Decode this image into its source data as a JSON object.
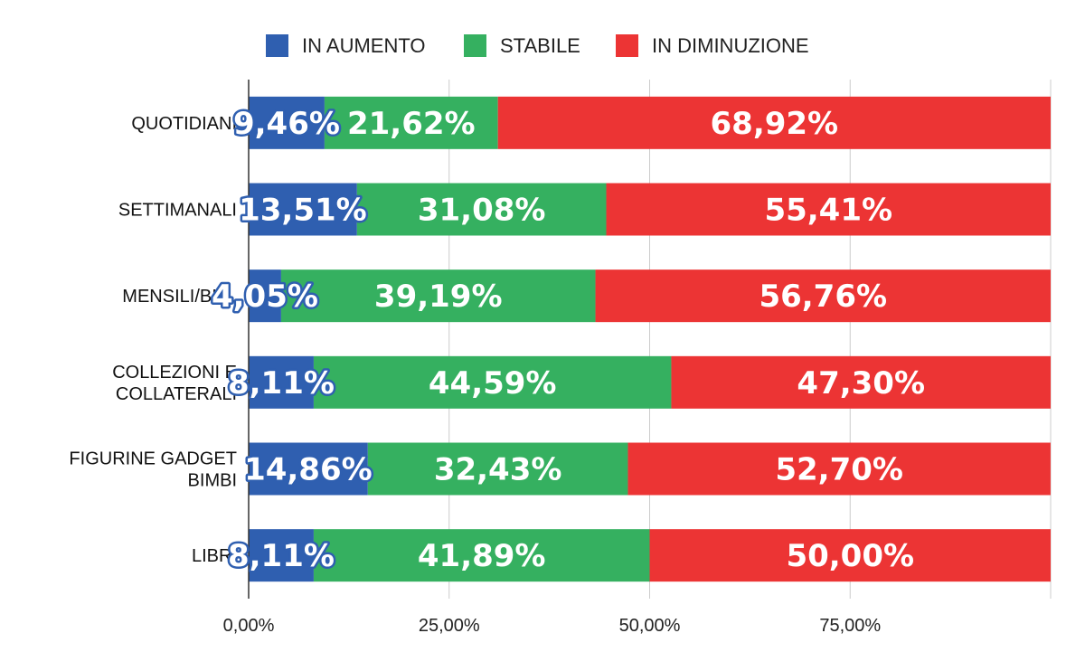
{
  "chart_data": {
    "type": "bar",
    "orientation": "horizontal",
    "stacked": true,
    "title": "",
    "xlabel": "",
    "ylabel": "",
    "categories": [
      "QUOTIDIANI",
      "SETTIMANALI",
      "MENSILI/BIM.",
      "COLLEZIONI E COLLATERALI",
      "FIGURINE GADGET BIMBI",
      "LIBRI"
    ],
    "category_lines": [
      [
        "QUOTIDIANI"
      ],
      [
        "SETTIMANALI"
      ],
      [
        "MENSILI/BIM."
      ],
      [
        "COLLEZIONI E",
        "COLLATERALI"
      ],
      [
        "FIGURINE GADGET",
        "BIMBI"
      ],
      [
        "LIBRI"
      ]
    ],
    "series": [
      {
        "name": "IN AUMENTO",
        "color": "#2f5fb0",
        "values": [
          9.46,
          13.51,
          4.05,
          8.11,
          14.86,
          8.11
        ],
        "labels": [
          "9,46%",
          "13,51%",
          "4,05%",
          "8,11%",
          "14,86%",
          "8,11%"
        ]
      },
      {
        "name": "STABILE",
        "color": "#35b060",
        "values": [
          21.62,
          31.08,
          39.19,
          44.59,
          32.43,
          41.89
        ],
        "labels": [
          "21,62%",
          "31,08%",
          "39,19%",
          "44,59%",
          "32,43%",
          "41,89%"
        ]
      },
      {
        "name": "IN DIMINUZIONE",
        "color": "#ec3434",
        "values": [
          68.92,
          55.41,
          56.76,
          47.3,
          52.7,
          50.0
        ],
        "labels": [
          "68,92%",
          "55,41%",
          "56,76%",
          "47,30%",
          "52,70%",
          "50,00%"
        ]
      }
    ],
    "xlim": [
      0,
      100
    ],
    "xticks": [
      0,
      25,
      50,
      75
    ],
    "xtick_labels": [
      "0,00%",
      "25,00%",
      "50,00%",
      "75,00%"
    ],
    "grid": true,
    "legend_position": "top"
  }
}
